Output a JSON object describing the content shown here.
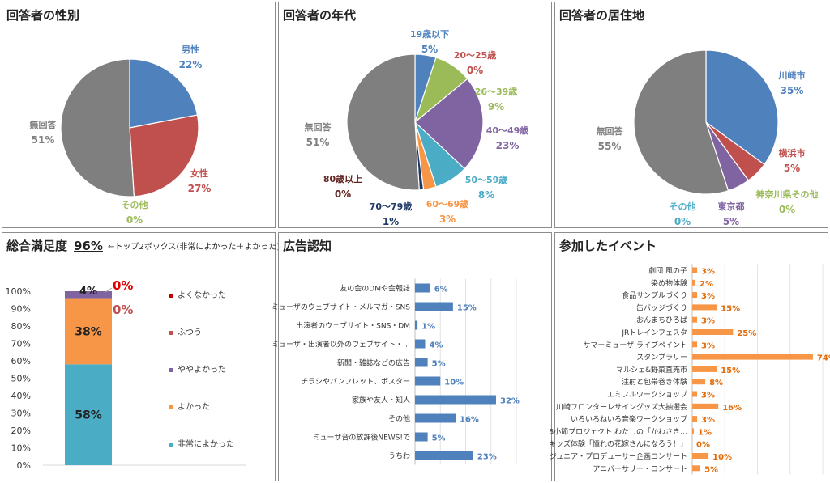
{
  "gender": {
    "title": "回答者の性別",
    "chart_data": {
      "type": "pie",
      "title": "回答者の性別",
      "slices": [
        {
          "label": "男性",
          "value": 22,
          "color": "#4f81bd"
        },
        {
          "label": "女性",
          "value": 27,
          "color": "#c0504d"
        },
        {
          "label": "その他",
          "value": 0,
          "color": "#9bbb59"
        },
        {
          "label": "無回答",
          "value": 51,
          "color": "#7f7f7f"
        }
      ]
    }
  },
  "age": {
    "title": "回答者の年代",
    "chart_data": {
      "type": "pie",
      "title": "回答者の年代",
      "slices": [
        {
          "label": "19歳以下",
          "value": 5,
          "color": "#4f81bd"
        },
        {
          "label": "20～25歳",
          "value": 0,
          "color": "#c0504d"
        },
        {
          "label": "26～39歳",
          "value": 9,
          "color": "#9bbb59"
        },
        {
          "label": "40～49歳",
          "value": 23,
          "color": "#8064a2"
        },
        {
          "label": "50～59歳",
          "value": 8,
          "color": "#4bacc6"
        },
        {
          "label": "60～69歳",
          "value": 3,
          "color": "#f79646"
        },
        {
          "label": "70～79歳",
          "value": 1,
          "color": "#1f3864"
        },
        {
          "label": "80歳以上",
          "value": 0,
          "color": "#632523"
        },
        {
          "label": "無回答",
          "value": 51,
          "color": "#7f7f7f"
        }
      ]
    }
  },
  "residence": {
    "title": "回答者の居住地",
    "chart_data": {
      "type": "pie",
      "title": "回答者の居住地",
      "slices": [
        {
          "label": "川崎市",
          "value": 35,
          "color": "#4f81bd"
        },
        {
          "label": "横浜市",
          "value": 5,
          "color": "#c0504d"
        },
        {
          "label": "神奈川県その他",
          "value": 0,
          "color": "#9bbb59"
        },
        {
          "label": "東京都",
          "value": 5,
          "color": "#8064a2"
        },
        {
          "label": "その他",
          "value": 0,
          "color": "#4bacc6"
        },
        {
          "label": "無回答",
          "value": 55,
          "color": "#7f7f7f"
        }
      ]
    }
  },
  "satisfaction": {
    "title": "総合満足度",
    "top2": "96%",
    "note": "←トップ2ボックス(非常によかった＋よかった)",
    "chart_data": {
      "type": "bar",
      "title": "総合満足度",
      "ylim": [
        0,
        100
      ],
      "yticks": [
        "0%",
        "10%",
        "20%",
        "30%",
        "40%",
        "50%",
        "60%",
        "70%",
        "80%",
        "90%",
        "100%"
      ],
      "series": [
        {
          "name": "非常によかった",
          "value": 58,
          "label": "58%",
          "color": "#4bacc6"
        },
        {
          "name": "よかった",
          "value": 38,
          "label": "38%",
          "color": "#f79646"
        },
        {
          "name": "ややよかった",
          "value": 4,
          "label": "4%",
          "color": "#8064a2"
        },
        {
          "name": "ふつう",
          "value": 0,
          "label": "0%",
          "color": "#c0504d"
        },
        {
          "name": "よくなかった",
          "value": 0,
          "label": "0%",
          "color": "#c00000"
        }
      ],
      "legend": [
        "よくなかった",
        "ふつう",
        "ややよかった",
        "よかった",
        "非常によかった"
      ]
    }
  },
  "ad": {
    "title": "広告認知",
    "chart_data": {
      "type": "bar",
      "orientation": "horizontal",
      "title": "広告認知",
      "bar_color": "#4f81bd",
      "label_color": "#4f81bd",
      "xlim": [
        0,
        48
      ],
      "categories": [
        "友の会のDMや会報誌",
        "ミューザのウェブサイト・メルマガ・SNS",
        "出演者のウェブサイト・SNS・DM",
        "ミューザ・出演者以外のウェブサイト・…",
        "新聞・雑誌などの広告",
        "チラシやパンフレット、ポスター",
        "家族や友人・知人",
        "その他",
        "ミューザ音の放課後NEWS!で",
        "うちわ"
      ],
      "values": [
        6,
        15,
        1,
        4,
        5,
        10,
        32,
        16,
        5,
        23
      ],
      "labels": [
        "6%",
        "15%",
        "1%",
        "4%",
        "5%",
        "10%",
        "32%",
        "16%",
        "5%",
        "23%"
      ]
    }
  },
  "events": {
    "title": "参加したイベント",
    "chart_data": {
      "type": "bar",
      "orientation": "horizontal",
      "title": "参加したイベント",
      "bar_color": "#f79646",
      "label_color": "#e36c09",
      "xlim": [
        0,
        80
      ],
      "categories": [
        "劇団 風の子",
        "染め物体験",
        "食品サンプルづくり",
        "缶バッジづくり",
        "おんまちひろば",
        "JRトレインフェスタ",
        "サマーミューザ ライブペイント",
        "スタンプラリー",
        "マルシェ&野菜直売市",
        "注射と包帯巻き体験",
        "エミフルワークショップ",
        "川崎フロンターレサイングッズ大抽選会",
        "いろいろねいろ音楽ワークショップ",
        "8小節プロジェクト わたしの「かわさき…",
        "キッズ体験「憧れの花嫁さんになろう！」",
        "ジュニア・プロデューサー企画コンサート",
        "アニバーサリー・コンサート"
      ],
      "values": [
        3,
        2,
        3,
        15,
        3,
        25,
        3,
        74,
        15,
        8,
        3,
        16,
        3,
        1,
        0,
        10,
        5
      ],
      "labels": [
        "3%",
        "2%",
        "3%",
        "15%",
        "3%",
        "25%",
        "3%",
        "74%",
        "15%",
        "8%",
        "3%",
        "16%",
        "3%",
        "1%",
        "0%",
        "10%",
        "5%"
      ]
    }
  }
}
